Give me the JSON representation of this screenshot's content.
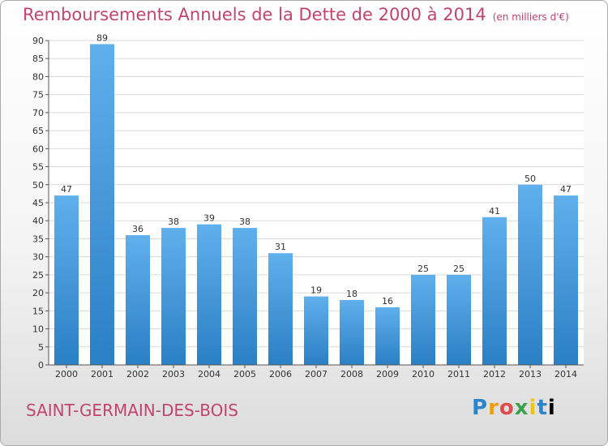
{
  "title": "Remboursements Annuels de la Dette de 2000 à 2014",
  "unit": "(en milliers d'€)",
  "place": "SAINT-GERMAIN-DES-BOIS",
  "logo": [
    "P",
    "r",
    "o",
    "x",
    "i",
    "t",
    "i"
  ],
  "colors": {
    "accent": "#c1446f",
    "bar": "#4a9fe0",
    "grid": "#d9d9d9"
  },
  "chart_data": {
    "type": "bar",
    "categories": [
      "2000",
      "2001",
      "2002",
      "2003",
      "2004",
      "2005",
      "2006",
      "2007",
      "2008",
      "2009",
      "2010",
      "2011",
      "2012",
      "2013",
      "2014"
    ],
    "values": [
      47,
      89,
      36,
      38,
      39,
      38,
      31,
      19,
      18,
      16,
      25,
      25,
      41,
      50,
      47
    ],
    "ylim": [
      0,
      90
    ],
    "yticks": [
      0,
      5,
      10,
      15,
      20,
      25,
      30,
      35,
      40,
      45,
      50,
      55,
      60,
      65,
      70,
      75,
      80,
      85,
      90
    ],
    "grid": true,
    "data_labels": true
  }
}
